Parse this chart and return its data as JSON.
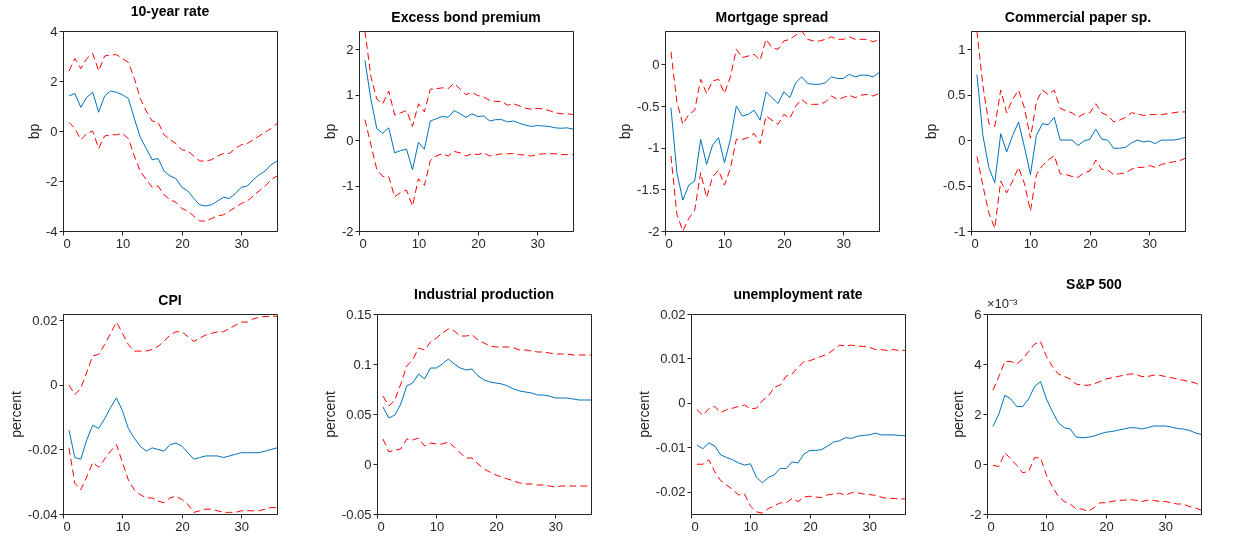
{
  "chart_data": [
    {
      "type": "line",
      "title": "10-year rate",
      "ylabel": "bp",
      "xlim": [
        0,
        36
      ],
      "xticks": [
        0,
        10,
        20,
        30
      ],
      "ylim": [
        -4,
        4
      ],
      "yticks": [
        -4,
        -2,
        0,
        2,
        4
      ],
      "x": [
        1,
        2,
        3,
        4,
        5,
        6,
        7,
        8,
        9,
        10,
        11,
        12,
        13,
        14,
        15,
        16,
        17,
        18,
        19,
        20,
        21,
        22,
        23,
        24,
        25,
        26,
        27,
        28,
        29,
        30,
        31,
        32,
        33,
        34,
        35,
        36
      ],
      "series": [
        {
          "color": "#0072bd",
          "line_style": "solid",
          "values": [
            1.4,
            1.5,
            0.95,
            1.35,
            1.55,
            0.75,
            1.4,
            1.6,
            1.55,
            1.45,
            1.3,
            0.5,
            -0.25,
            -0.7,
            -1.15,
            -1.1,
            -1.6,
            -1.8,
            -1.9,
            -2.25,
            -2.4,
            -2.7,
            -2.95,
            -3.0,
            -2.95,
            -2.8,
            -2.65,
            -2.7,
            -2.5,
            -2.25,
            -2.2,
            -1.95,
            -1.75,
            -1.6,
            -1.35,
            -1.2
          ]
        },
        {
          "color": "#ff0000",
          "line_style": "dashed",
          "values": [
            2.4,
            2.9,
            2.5,
            2.9,
            3.1,
            2.4,
            3.0,
            3.05,
            3.05,
            2.9,
            2.75,
            2.1,
            1.3,
            0.8,
            0.4,
            0.35,
            -0.15,
            -0.35,
            -0.5,
            -0.75,
            -0.8,
            -1.0,
            -1.2,
            -1.2,
            -1.15,
            -1.0,
            -0.9,
            -0.9,
            -0.7,
            -0.55,
            -0.5,
            -0.35,
            -0.2,
            -0.05,
            0.1,
            0.3
          ]
        },
        {
          "color": "#ff0000",
          "line_style": "dashed",
          "values": [
            0.35,
            0.1,
            -0.35,
            -0.1,
            0.0,
            -0.7,
            -0.2,
            -0.15,
            -0.15,
            -0.1,
            -0.3,
            -1.0,
            -1.6,
            -1.95,
            -2.25,
            -2.2,
            -2.55,
            -2.75,
            -2.85,
            -3.1,
            -3.2,
            -3.4,
            -3.6,
            -3.6,
            -3.5,
            -3.4,
            -3.35,
            -3.2,
            -3.05,
            -2.9,
            -2.8,
            -2.6,
            -2.4,
            -2.2,
            -1.95,
            -1.8
          ]
        }
      ]
    },
    {
      "type": "line",
      "title": "Excess bond premium",
      "ylabel": "bp",
      "xlim": [
        0,
        36
      ],
      "xticks": [
        0,
        10,
        20,
        30
      ],
      "ylim": [
        -2,
        2.4
      ],
      "yticks": [
        -2,
        -1,
        0,
        1,
        2
      ],
      "x": [
        1,
        2,
        3,
        4,
        5,
        6,
        7,
        8,
        9,
        10,
        11,
        12,
        13,
        14,
        15,
        16,
        17,
        18,
        19,
        20,
        21,
        22,
        23,
        24,
        25,
        26,
        27,
        28,
        29,
        30,
        31,
        32,
        33,
        34,
        35,
        36
      ],
      "series": [
        {
          "color": "#0072bd",
          "line_style": "solid",
          "values": [
            1.75,
            0.9,
            0.25,
            0.15,
            0.27,
            -0.28,
            -0.23,
            -0.2,
            -0.65,
            -0.05,
            -0.2,
            0.42,
            0.47,
            0.52,
            0.5,
            0.65,
            0.58,
            0.5,
            0.58,
            0.52,
            0.53,
            0.42,
            0.45,
            0.45,
            0.4,
            0.42,
            0.37,
            0.33,
            0.3,
            0.32,
            0.31,
            0.3,
            0.27,
            0.26,
            0.27,
            0.24
          ]
        },
        {
          "color": "#ff0000",
          "line_style": "dashed",
          "values": [
            2.4,
            1.4,
            0.9,
            0.8,
            1.08,
            0.55,
            0.6,
            0.65,
            0.3,
            0.8,
            0.62,
            1.12,
            1.13,
            1.15,
            1.13,
            1.25,
            1.12,
            1.0,
            1.05,
            0.98,
            0.95,
            0.87,
            0.85,
            0.85,
            0.77,
            0.8,
            0.75,
            0.7,
            0.68,
            0.7,
            0.68,
            0.65,
            0.6,
            0.58,
            0.58,
            0.56
          ]
        },
        {
          "color": "#ff0000",
          "line_style": "dashed",
          "values": [
            0.45,
            -0.1,
            -0.65,
            -0.8,
            -0.8,
            -1.25,
            -1.15,
            -1.1,
            -1.45,
            -0.85,
            -1.0,
            -0.45,
            -0.35,
            -0.3,
            -0.35,
            -0.25,
            -0.28,
            -0.35,
            -0.3,
            -0.32,
            -0.28,
            -0.35,
            -0.33,
            -0.3,
            -0.3,
            -0.3,
            -0.32,
            -0.33,
            -0.35,
            -0.32,
            -0.3,
            -0.3,
            -0.3,
            -0.32,
            -0.32,
            -0.32
          ]
        }
      ]
    },
    {
      "type": "line",
      "title": "Mortgage spread",
      "ylabel": "bp",
      "xlim": [
        0,
        36
      ],
      "xticks": [
        0,
        10,
        20,
        30
      ],
      "ylim": [
        -2,
        0.4
      ],
      "yticks": [
        -2,
        -1.5,
        -1,
        -0.5,
        0
      ],
      "x": [
        1,
        2,
        3,
        4,
        5,
        6,
        7,
        8,
        9,
        10,
        11,
        12,
        13,
        14,
        15,
        16,
        17,
        18,
        19,
        20,
        21,
        22,
        23,
        24,
        25,
        26,
        27,
        28,
        29,
        30,
        31,
        32,
        33,
        34,
        35,
        36
      ],
      "series": [
        {
          "color": "#0072bd",
          "line_style": "solid",
          "values": [
            -0.52,
            -1.3,
            -1.63,
            -1.45,
            -1.4,
            -0.9,
            -1.2,
            -0.97,
            -0.88,
            -1.18,
            -0.9,
            -0.5,
            -0.62,
            -0.6,
            -0.55,
            -0.67,
            -0.33,
            -0.4,
            -0.47,
            -0.33,
            -0.4,
            -0.22,
            -0.15,
            -0.23,
            -0.24,
            -0.24,
            -0.22,
            -0.15,
            -0.17,
            -0.17,
            -0.12,
            -0.15,
            -0.13,
            -0.13,
            -0.15,
            -0.1
          ]
        },
        {
          "color": "#ff0000",
          "line_style": "dashed",
          "values": [
            0.15,
            -0.45,
            -0.72,
            -0.6,
            -0.55,
            -0.18,
            -0.35,
            -0.2,
            -0.18,
            -0.35,
            -0.15,
            0.18,
            0.08,
            0.1,
            0.12,
            0.05,
            0.3,
            0.2,
            0.18,
            0.28,
            0.3,
            0.35,
            0.4,
            0.3,
            0.28,
            0.28,
            0.3,
            0.33,
            0.3,
            0.3,
            0.33,
            0.3,
            0.3,
            0.3,
            0.27,
            0.3
          ]
        },
        {
          "color": "#ff0000",
          "line_style": "dashed",
          "values": [
            -1.1,
            -1.8,
            -2.0,
            -1.85,
            -1.75,
            -1.3,
            -1.6,
            -1.35,
            -1.27,
            -1.45,
            -1.25,
            -0.9,
            -0.9,
            -0.88,
            -0.83,
            -0.95,
            -0.62,
            -0.67,
            -0.72,
            -0.6,
            -0.65,
            -0.5,
            -0.42,
            -0.48,
            -0.48,
            -0.48,
            -0.45,
            -0.38,
            -0.42,
            -0.4,
            -0.37,
            -0.4,
            -0.37,
            -0.36,
            -0.38,
            -0.35
          ]
        }
      ]
    },
    {
      "type": "line",
      "title": "Commercial paper sp.",
      "ylabel": "bp",
      "xlim": [
        0,
        36
      ],
      "xticks": [
        0,
        10,
        20,
        30
      ],
      "ylim": [
        -1,
        1.2
      ],
      "yticks": [
        -1,
        -0.5,
        0,
        0.5,
        1
      ],
      "x": [
        1,
        2,
        3,
        4,
        5,
        6,
        7,
        8,
        9,
        10,
        11,
        12,
        13,
        14,
        15,
        16,
        17,
        18,
        19,
        20,
        21,
        22,
        23,
        24,
        25,
        26,
        27,
        28,
        29,
        30,
        31,
        32,
        33,
        34,
        35,
        36
      ],
      "series": [
        {
          "color": "#0072bd",
          "line_style": "solid",
          "values": [
            0.72,
            0.05,
            -0.3,
            -0.47,
            0.07,
            -0.13,
            0.05,
            0.2,
            -0.08,
            -0.38,
            0.05,
            0.18,
            0.17,
            0.25,
            0.0,
            0.0,
            0.0,
            -0.06,
            -0.01,
            0.01,
            0.12,
            0.01,
            0.0,
            -0.09,
            -0.09,
            -0.08,
            -0.03,
            0.0,
            -0.02,
            -0.01,
            -0.04,
            0.0,
            0.0,
            0.0,
            0.01,
            0.03
          ]
        },
        {
          "color": "#ff0000",
          "line_style": "dashed",
          "values": [
            1.2,
            0.6,
            0.18,
            0.15,
            0.55,
            0.3,
            0.45,
            0.55,
            0.35,
            0.02,
            0.42,
            0.55,
            0.5,
            0.55,
            0.35,
            0.32,
            0.3,
            0.25,
            0.29,
            0.3,
            0.4,
            0.3,
            0.27,
            0.2,
            0.22,
            0.25,
            0.3,
            0.29,
            0.27,
            0.28,
            0.28,
            0.28,
            0.29,
            0.3,
            0.31,
            0.31
          ]
        },
        {
          "color": "#ff0000",
          "line_style": "dashed",
          "values": [
            -0.18,
            -0.5,
            -0.8,
            -0.97,
            -0.45,
            -0.58,
            -0.45,
            -0.3,
            -0.48,
            -0.78,
            -0.38,
            -0.28,
            -0.22,
            -0.17,
            -0.37,
            -0.38,
            -0.4,
            -0.41,
            -0.36,
            -0.34,
            -0.22,
            -0.32,
            -0.33,
            -0.38,
            -0.37,
            -0.36,
            -0.32,
            -0.3,
            -0.3,
            -0.28,
            -0.3,
            -0.27,
            -0.25,
            -0.24,
            -0.23,
            -0.2
          ]
        }
      ]
    },
    {
      "type": "line",
      "title": "CPI",
      "ylabel": "percent",
      "xlim": [
        0,
        36
      ],
      "xticks": [
        0,
        10,
        20,
        30
      ],
      "ylim": [
        -0.04,
        0.022
      ],
      "yticks": [
        -0.04,
        -0.02,
        0,
        0.02
      ],
      "x": [
        1,
        2,
        3,
        4,
        5,
        6,
        7,
        8,
        9,
        10,
        11,
        12,
        13,
        14,
        15,
        16,
        17,
        18,
        19,
        20,
        21,
        22,
        23,
        24,
        25,
        26,
        27,
        28,
        29,
        30,
        31,
        32,
        33,
        34,
        35,
        36
      ],
      "series": [
        {
          "color": "#0072bd",
          "line_style": "solid",
          "values": [
            -0.014,
            -0.0225,
            -0.023,
            -0.017,
            -0.0125,
            -0.0135,
            -0.0105,
            -0.007,
            -0.004,
            -0.008,
            -0.0135,
            -0.0165,
            -0.019,
            -0.0205,
            -0.0195,
            -0.02,
            -0.0205,
            -0.0185,
            -0.018,
            -0.019,
            -0.021,
            -0.023,
            -0.0225,
            -0.022,
            -0.022,
            -0.022,
            -0.0225,
            -0.022,
            -0.0215,
            -0.021,
            -0.021,
            -0.021,
            -0.021,
            -0.0205,
            -0.02,
            -0.0195
          ]
        },
        {
          "color": "#ff0000",
          "line_style": "dashed",
          "values": [
            0.0,
            -0.003,
            -0.001,
            0.004,
            0.009,
            0.0095,
            0.0125,
            0.016,
            0.0195,
            0.016,
            0.0125,
            0.0105,
            0.0105,
            0.0105,
            0.011,
            0.012,
            0.0135,
            0.0155,
            0.0165,
            0.0165,
            0.015,
            0.0135,
            0.0145,
            0.0155,
            0.016,
            0.0165,
            0.0165,
            0.0175,
            0.0185,
            0.0195,
            0.0195,
            0.0205,
            0.021,
            0.0212,
            0.0213,
            0.0213
          ]
        },
        {
          "color": "#ff0000",
          "line_style": "dashed",
          "values": [
            -0.0195,
            -0.0305,
            -0.0325,
            -0.0285,
            -0.024,
            -0.0255,
            -0.023,
            -0.0205,
            -0.0185,
            -0.024,
            -0.0295,
            -0.0325,
            -0.034,
            -0.035,
            -0.035,
            -0.036,
            -0.0365,
            -0.035,
            -0.0345,
            -0.0355,
            -0.037,
            -0.0395,
            -0.039,
            -0.0385,
            -0.0385,
            -0.039,
            -0.0395,
            -0.0395,
            -0.0395,
            -0.039,
            -0.039,
            -0.039,
            -0.039,
            -0.0385,
            -0.038,
            -0.038
          ]
        }
      ]
    },
    {
      "type": "line",
      "title": "Industrial production",
      "ylabel": "percent",
      "xlim": [
        0,
        36
      ],
      "xticks": [
        0,
        10,
        20,
        30
      ],
      "ylim": [
        -0.05,
        0.15
      ],
      "yticks": [
        -0.05,
        0,
        0.05,
        0.1,
        0.15
      ],
      "x": [
        1,
        2,
        3,
        4,
        5,
        6,
        7,
        8,
        9,
        10,
        11,
        12,
        13,
        14,
        15,
        16,
        17,
        18,
        19,
        20,
        21,
        22,
        23,
        24,
        25,
        26,
        27,
        28,
        29,
        30,
        31,
        32,
        33,
        34,
        35,
        36
      ],
      "series": [
        {
          "color": "#0072bd",
          "line_style": "solid",
          "values": [
            0.057,
            0.046,
            0.049,
            0.06,
            0.078,
            0.081,
            0.09,
            0.085,
            0.096,
            0.096,
            0.1,
            0.105,
            0.1,
            0.096,
            0.094,
            0.095,
            0.088,
            0.084,
            0.082,
            0.081,
            0.08,
            0.078,
            0.075,
            0.073,
            0.072,
            0.071,
            0.069,
            0.069,
            0.068,
            0.066,
            0.066,
            0.066,
            0.065,
            0.064,
            0.064,
            0.064
          ]
        },
        {
          "color": "#ff0000",
          "line_style": "dashed",
          "values": [
            0.068,
            0.058,
            0.064,
            0.08,
            0.098,
            0.104,
            0.116,
            0.114,
            0.122,
            0.126,
            0.131,
            0.135,
            0.133,
            0.128,
            0.128,
            0.129,
            0.124,
            0.121,
            0.118,
            0.117,
            0.117,
            0.117,
            0.116,
            0.114,
            0.114,
            0.113,
            0.112,
            0.112,
            0.111,
            0.11,
            0.11,
            0.11,
            0.109,
            0.109,
            0.109,
            0.109
          ]
        },
        {
          "color": "#ff0000",
          "line_style": "dashed",
          "values": [
            0.025,
            0.012,
            0.014,
            0.015,
            0.025,
            0.024,
            0.026,
            0.018,
            0.021,
            0.02,
            0.02,
            0.022,
            0.017,
            0.011,
            0.006,
            0.006,
            0.0,
            -0.005,
            -0.008,
            -0.011,
            -0.013,
            -0.015,
            -0.017,
            -0.019,
            -0.02,
            -0.02,
            -0.021,
            -0.021,
            -0.022,
            -0.023,
            -0.022,
            -0.022,
            -0.022,
            -0.022,
            -0.022,
            -0.022
          ]
        }
      ]
    },
    {
      "type": "line",
      "title": "unemployment rate",
      "ylabel": "percent",
      "xlim": [
        0,
        36
      ],
      "xticks": [
        0,
        10,
        20,
        30
      ],
      "ylim": [
        -0.025,
        0.02
      ],
      "yticks": [
        -0.02,
        -0.01,
        0,
        0.01,
        0.02
      ],
      "x": [
        1,
        2,
        3,
        4,
        5,
        6,
        7,
        8,
        9,
        10,
        11,
        12,
        13,
        14,
        15,
        16,
        17,
        18,
        19,
        20,
        21,
        22,
        23,
        24,
        25,
        26,
        27,
        28,
        29,
        30,
        31,
        32,
        33,
        34,
        35,
        36
      ],
      "series": [
        {
          "color": "#0072bd",
          "line_style": "solid",
          "values": [
            -0.0095,
            -0.0103,
            -0.009,
            -0.0097,
            -0.0117,
            -0.0123,
            -0.0128,
            -0.0135,
            -0.014,
            -0.0137,
            -0.0167,
            -0.018,
            -0.0168,
            -0.0162,
            -0.0147,
            -0.0148,
            -0.0133,
            -0.0135,
            -0.0115,
            -0.0107,
            -0.0107,
            -0.0105,
            -0.0097,
            -0.0088,
            -0.0085,
            -0.0078,
            -0.008,
            -0.0075,
            -0.0073,
            -0.0072,
            -0.0068,
            -0.0072,
            -0.0072,
            -0.0072,
            -0.0073,
            -0.0074
          ]
        },
        {
          "color": "#ff0000",
          "line_style": "dashed",
          "values": [
            -0.0015,
            -0.0028,
            -0.0013,
            -0.0008,
            -0.0022,
            -0.0015,
            -0.0012,
            -0.0008,
            -0.0005,
            -0.0013,
            -0.0012,
            0.0005,
            0.0015,
            0.0035,
            0.004,
            0.006,
            0.0065,
            0.008,
            0.0093,
            0.0095,
            0.01,
            0.0105,
            0.011,
            0.012,
            0.013,
            0.0128,
            0.013,
            0.0128,
            0.0127,
            0.0125,
            0.012,
            0.012,
            0.0118,
            0.012,
            0.0118,
            0.0118
          ]
        },
        {
          "color": "#ff0000",
          "line_style": "dashed",
          "values": [
            -0.0138,
            -0.0138,
            -0.0128,
            -0.0155,
            -0.0175,
            -0.0185,
            -0.0195,
            -0.0207,
            -0.0205,
            -0.0232,
            -0.0245,
            -0.0248,
            -0.0238,
            -0.0232,
            -0.0225,
            -0.0225,
            -0.0215,
            -0.0222,
            -0.0212,
            -0.021,
            -0.0212,
            -0.0213,
            -0.0207,
            -0.0205,
            -0.0203,
            -0.0208,
            -0.0202,
            -0.0202,
            -0.0205,
            -0.0206,
            -0.0208,
            -0.0212,
            -0.0215,
            -0.0215,
            -0.0216,
            -0.0216
          ]
        }
      ]
    },
    {
      "type": "line",
      "title": "S&P 500",
      "ylabel": "percent",
      "annotations": [
        "×10⁻³"
      ],
      "xlim": [
        0,
        36
      ],
      "xticks": [
        0,
        10,
        20,
        30
      ],
      "ylim": [
        -2,
        6
      ],
      "yticks": [
        -2,
        0,
        2,
        4,
        6
      ],
      "x": [
        1,
        2,
        3,
        4,
        5,
        6,
        7,
        8,
        9,
        10,
        11,
        12,
        13,
        14,
        15,
        16,
        17,
        18,
        19,
        20,
        21,
        22,
        23,
        24,
        25,
        26,
        27,
        28,
        29,
        30,
        31,
        32,
        33,
        34,
        35,
        36
      ],
      "series": [
        {
          "color": "#0072bd",
          "line_style": "solid",
          "values": [
            1.5,
            2.0,
            2.75,
            2.6,
            2.3,
            2.3,
            2.6,
            3.1,
            3.3,
            2.6,
            2.1,
            1.65,
            1.45,
            1.4,
            1.08,
            1.05,
            1.07,
            1.12,
            1.2,
            1.27,
            1.3,
            1.35,
            1.4,
            1.45,
            1.45,
            1.4,
            1.45,
            1.52,
            1.52,
            1.52,
            1.48,
            1.42,
            1.4,
            1.35,
            1.25,
            1.18
          ]
        },
        {
          "color": "#ff0000",
          "line_style": "dashed",
          "values": [
            2.95,
            3.5,
            4.1,
            4.1,
            4.0,
            4.2,
            4.5,
            4.8,
            4.9,
            4.3,
            3.9,
            3.6,
            3.5,
            3.4,
            3.2,
            3.15,
            3.15,
            3.2,
            3.3,
            3.4,
            3.45,
            3.5,
            3.55,
            3.6,
            3.6,
            3.5,
            3.5,
            3.55,
            3.55,
            3.5,
            3.45,
            3.4,
            3.35,
            3.3,
            3.25,
            3.12
          ]
        },
        {
          "color": "#ff0000",
          "line_style": "dashed",
          "values": [
            -0.05,
            -0.1,
            0.45,
            0.2,
            -0.05,
            -0.35,
            -0.3,
            0.25,
            0.25,
            -0.45,
            -0.9,
            -1.3,
            -1.5,
            -1.6,
            -1.8,
            -1.8,
            -1.9,
            -1.75,
            -1.55,
            -1.55,
            -1.5,
            -1.45,
            -1.45,
            -1.42,
            -1.45,
            -1.5,
            -1.45,
            -1.45,
            -1.5,
            -1.5,
            -1.55,
            -1.6,
            -1.6,
            -1.7,
            -1.75,
            -1.85
          ]
        }
      ]
    }
  ]
}
